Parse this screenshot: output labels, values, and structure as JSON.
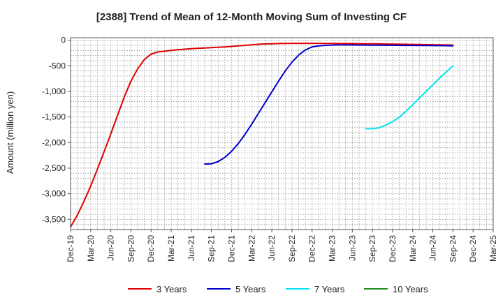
{
  "chart_data": {
    "type": "line",
    "title": "[2388]  Trend of Mean of 12-Month Moving Sum of Investing CF",
    "ylabel": "Amount (million yen)",
    "xlabel": "",
    "ylim": [
      -3700,
      50
    ],
    "yticks": [
      0,
      -500,
      -1000,
      -1500,
      -2000,
      -2500,
      -3000,
      -3500
    ],
    "ytick_labels": [
      "0",
      "-500",
      "-1,000",
      "-1,500",
      "-2,000",
      "-2,500",
      "-3,000",
      "-3,500"
    ],
    "xticks": [
      "2019-12",
      "2020-03",
      "2020-06",
      "2020-09",
      "2020-12",
      "2021-03",
      "2021-06",
      "2021-09",
      "2021-12",
      "2022-03",
      "2022-06",
      "2022-09",
      "2022-12",
      "2023-03",
      "2023-06",
      "2023-09",
      "2023-12",
      "2024-03",
      "2024-06",
      "2024-09",
      "2024-12",
      "2025-03"
    ],
    "xtick_labels": [
      "Dec-19",
      "Mar-20",
      "Jun-20",
      "Sep-20",
      "Dec-20",
      "Mar-21",
      "Jun-21",
      "Sep-21",
      "Dec-21",
      "Mar-22",
      "Jun-22",
      "Sep-22",
      "Dec-22",
      "Mar-23",
      "Jun-23",
      "Sep-23",
      "Dec-23",
      "Mar-24",
      "Jun-24",
      "Sep-24",
      "Dec-24",
      "Mar-25"
    ],
    "grid": true,
    "legend_position": "bottom",
    "series": [
      {
        "name": "3 Years",
        "color": "#dd0000",
        "x": [
          "2019-12",
          "2020-01",
          "2020-02",
          "2020-03",
          "2020-04",
          "2020-05",
          "2020-06",
          "2020-07",
          "2020-08",
          "2020-09",
          "2020-10",
          "2020-11",
          "2020-12",
          "2021-01",
          "2021-02",
          "2021-03",
          "2021-04",
          "2021-05",
          "2021-06",
          "2021-07",
          "2021-08",
          "2021-09",
          "2021-10",
          "2021-11",
          "2021-12",
          "2022-01",
          "2022-02",
          "2022-03",
          "2022-04",
          "2022-05",
          "2022-06",
          "2022-07",
          "2022-08",
          "2022-09",
          "2022-10",
          "2022-11",
          "2022-12",
          "2023-01",
          "2023-02",
          "2023-03",
          "2023-04",
          "2023-05",
          "2023-06",
          "2023-07",
          "2023-08",
          "2023-09",
          "2023-10",
          "2023-11",
          "2023-12",
          "2024-01",
          "2024-02",
          "2024-03",
          "2024-04",
          "2024-05",
          "2024-06",
          "2024-07",
          "2024-08",
          "2024-09"
        ],
        "values": [
          -3650,
          -3420,
          -3150,
          -2850,
          -2520,
          -2180,
          -1830,
          -1470,
          -1110,
          -800,
          -560,
          -380,
          -270,
          -230,
          -215,
          -200,
          -185,
          -175,
          -165,
          -158,
          -152,
          -145,
          -138,
          -130,
          -120,
          -110,
          -100,
          -90,
          -80,
          -72,
          -68,
          -64,
          -62,
          -60,
          -60,
          -60,
          -60,
          -61,
          -62,
          -63,
          -64,
          -65,
          -66,
          -67,
          -68,
          -70,
          -72,
          -74,
          -76,
          -78,
          -80,
          -82,
          -84,
          -86,
          -88,
          -90,
          -92,
          -95
        ]
      },
      {
        "name": "5 Years",
        "color": "#0000cc",
        "x": [
          "2021-08",
          "2021-09",
          "2021-10",
          "2021-11",
          "2021-12",
          "2022-01",
          "2022-02",
          "2022-03",
          "2022-04",
          "2022-05",
          "2022-06",
          "2022-07",
          "2022-08",
          "2022-09",
          "2022-10",
          "2022-11",
          "2022-12",
          "2023-01",
          "2023-02",
          "2023-03",
          "2023-04",
          "2023-05",
          "2023-06",
          "2023-07",
          "2023-08",
          "2023-09",
          "2023-10",
          "2023-11",
          "2023-12",
          "2024-01",
          "2024-02",
          "2024-03",
          "2024-04",
          "2024-05",
          "2024-06",
          "2024-07",
          "2024-08",
          "2024-09"
        ],
        "values": [
          -2420,
          -2415,
          -2370,
          -2290,
          -2170,
          -2020,
          -1840,
          -1640,
          -1430,
          -1220,
          -1010,
          -800,
          -600,
          -430,
          -290,
          -190,
          -130,
          -110,
          -100,
          -95,
          -92,
          -92,
          -93,
          -94,
          -95,
          -96,
          -97,
          -98,
          -99,
          -100,
          -101,
          -102,
          -103,
          -104,
          -105,
          -106,
          -107,
          -110
        ]
      },
      {
        "name": "7 Years",
        "color": "#00e5ee",
        "x": [
          "2023-08",
          "2023-09",
          "2023-10",
          "2023-11",
          "2023-12",
          "2024-01",
          "2024-02",
          "2024-03",
          "2024-04",
          "2024-05",
          "2024-06",
          "2024-07",
          "2024-08",
          "2024-09"
        ],
        "values": [
          -1730,
          -1730,
          -1710,
          -1660,
          -1590,
          -1500,
          -1390,
          -1260,
          -1130,
          -1000,
          -870,
          -740,
          -620,
          -500
        ]
      },
      {
        "name": "10 Years",
        "color": "#228b22",
        "x": [],
        "values": []
      }
    ]
  }
}
